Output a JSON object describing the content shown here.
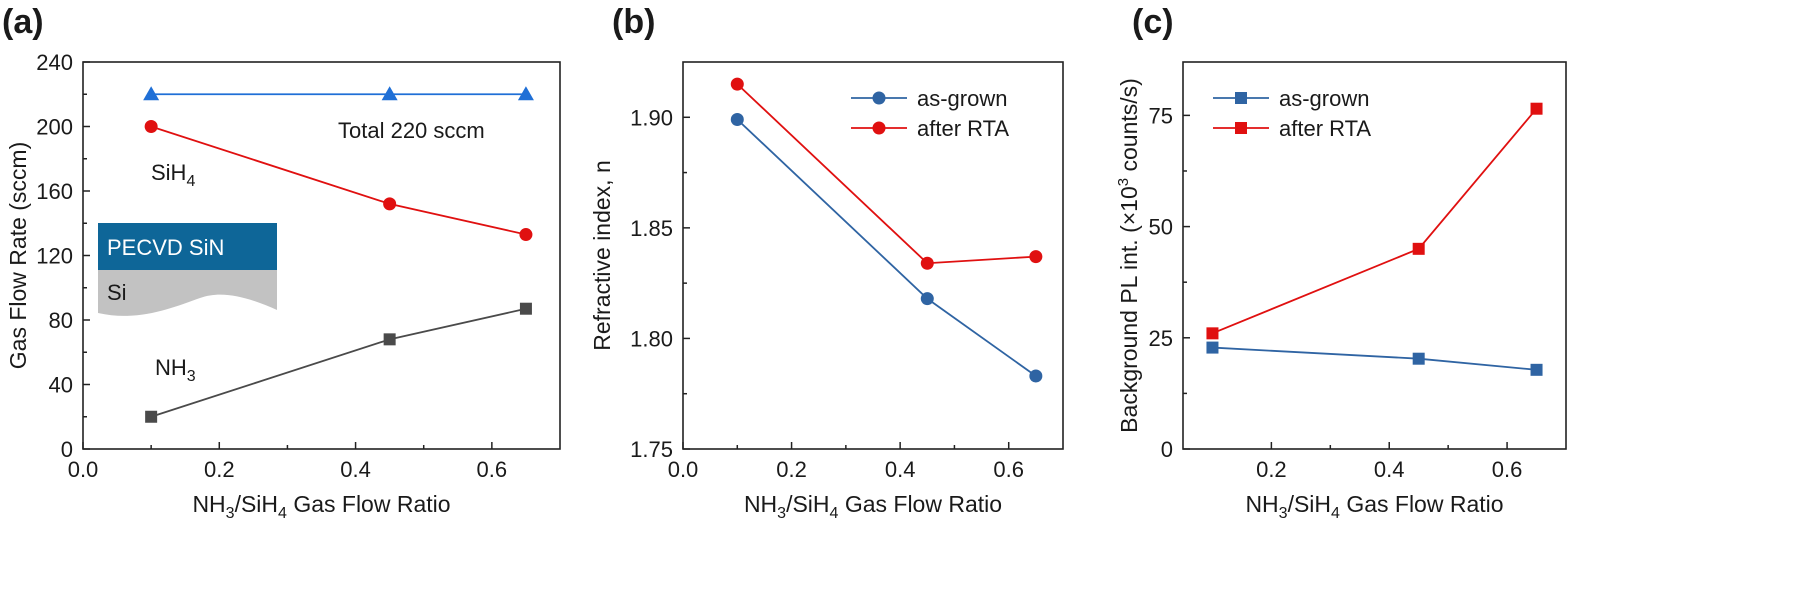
{
  "chart_data": [
    {
      "type": "line",
      "panel_label": "(a)",
      "xlabel": "NH3/SiH4 Gas Flow Ratio",
      "ylabel": "Gas Flow Rate (sccm)",
      "xlim": [
        0.0,
        0.7
      ],
      "ylim": [
        0,
        240
      ],
      "xticks": [
        "0.0",
        "0.2",
        "0.4",
        "0.6"
      ],
      "yticks": [
        "0",
        "40",
        "80",
        "120",
        "160",
        "200",
        "240"
      ],
      "series": [
        {
          "name": "Total",
          "marker": "triangle",
          "color": "#1f6fd6",
          "x": [
            0.1,
            0.45,
            0.65
          ],
          "y": [
            220,
            220,
            220
          ]
        },
        {
          "name": "SiH4",
          "marker": "circle",
          "color": "#e01010",
          "x": [
            0.1,
            0.45,
            0.65
          ],
          "y": [
            200,
            152,
            133
          ]
        },
        {
          "name": "NH3",
          "marker": "square",
          "color": "#4a4a4a",
          "x": [
            0.1,
            0.45,
            0.65
          ],
          "y": [
            20,
            68,
            87
          ]
        }
      ],
      "annotations": {
        "total": "Total 220 sccm",
        "sih4_main": "SiH",
        "sih4_sub": "4",
        "nh3_main": "NH",
        "nh3_sub": "3"
      },
      "inset": {
        "top_layer": "PECVD SiN",
        "bottom_layer": "Si",
        "top_color": "#0e6698",
        "bottom_color": "#c2c2c2"
      }
    },
    {
      "type": "line",
      "panel_label": "(b)",
      "xlabel": "NH3/SiH4 Gas Flow Ratio",
      "ylabel": "Refractive index, n",
      "xlim": [
        0.0,
        0.7
      ],
      "ylim": [
        1.75,
        1.925
      ],
      "xticks": [
        "0.0",
        "0.2",
        "0.4",
        "0.6"
      ],
      "yticks": [
        "1.75",
        "1.80",
        "1.85",
        "1.90"
      ],
      "legend_position": "top-right",
      "series": [
        {
          "name": "as-grown",
          "marker": "circle",
          "color": "#2f64a3",
          "x": [
            0.1,
            0.45,
            0.65
          ],
          "y": [
            1.899,
            1.818,
            1.783
          ]
        },
        {
          "name": "after RTA",
          "marker": "circle",
          "color": "#e01010",
          "x": [
            0.1,
            0.45,
            0.65
          ],
          "y": [
            1.915,
            1.834,
            1.837
          ]
        }
      ]
    },
    {
      "type": "line",
      "panel_label": "(c)",
      "xlabel": "NH3/SiH4 Gas Flow Ratio",
      "ylabel": "Background PL int. (×10³ counts/s)",
      "ylabel_parts": {
        "main": "Background PL int. (×10",
        "sup": "3",
        "tail": " counts/s)"
      },
      "xlim": [
        0.05,
        0.7
      ],
      "ylim": [
        0,
        87
      ],
      "xticks": [
        "0.2",
        "0.4",
        "0.6"
      ],
      "yticks": [
        "0",
        "25",
        "50",
        "75"
      ],
      "legend_position": "top-left",
      "series": [
        {
          "name": "as-grown",
          "marker": "square",
          "color": "#2f64a3",
          "x": [
            0.1,
            0.45,
            0.65
          ],
          "y": [
            22.8,
            20.3,
            17.8
          ]
        },
        {
          "name": "after RTA",
          "marker": "square",
          "color": "#e01010",
          "x": [
            0.1,
            0.45,
            0.65
          ],
          "y": [
            26,
            45,
            76.5
          ]
        }
      ]
    }
  ]
}
